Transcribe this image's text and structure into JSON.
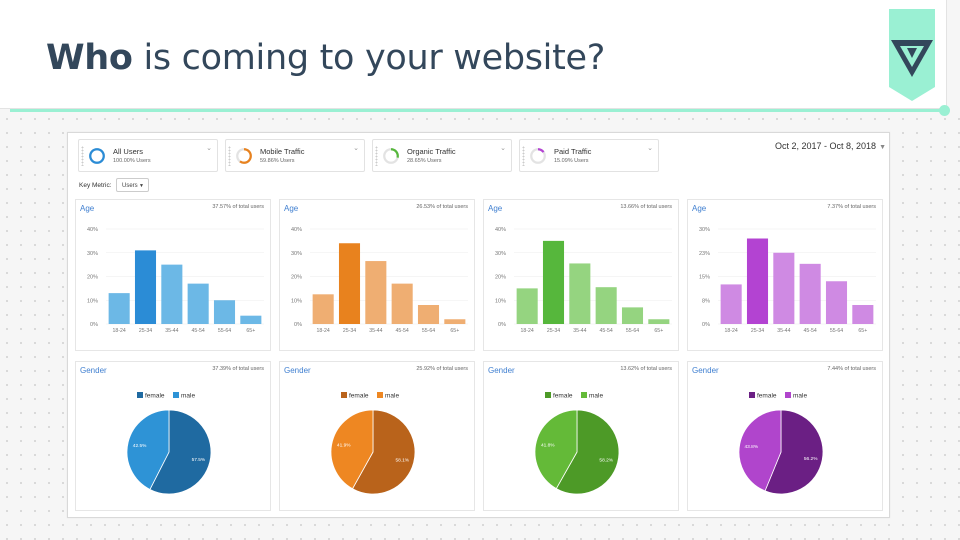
{
  "slide": {
    "title_bold": "Who",
    "title_rest": " is coming to your website?",
    "accent_color": "#9af0d3",
    "logo_icon": "triangle-logo-icon"
  },
  "dashboard": {
    "segments": [
      {
        "name": "All Users",
        "pct": "100.00% Users",
        "ring_value": 100,
        "color": "#2b8cd6"
      },
      {
        "name": "Mobile Traffic",
        "pct": "59.86% Users",
        "ring_value": 59.86,
        "color": "#e8821e"
      },
      {
        "name": "Organic Traffic",
        "pct": "28.65% Users",
        "ring_value": 28.65,
        "color": "#56b73c"
      },
      {
        "name": "Paid Traffic",
        "pct": "15.09% Users",
        "ring_value": 15.09,
        "color": "#b343d2"
      }
    ],
    "date_range": "Oct 2, 2017 - Oct 8, 2018",
    "key_metric_label": "Key Metric:",
    "key_metric_value": "Users"
  },
  "chart_data": [
    {
      "type": "bar",
      "title": "Age",
      "subtitle": "37.57% of total users",
      "color": "#2b8cd6",
      "light_color": "#6cb8e6",
      "categories": [
        "18-24",
        "25-34",
        "35-44",
        "45-54",
        "55-64",
        "65+"
      ],
      "values": [
        13,
        31,
        25,
        17,
        10,
        3.5
      ],
      "yticks": [
        "40%",
        "30%",
        "20%",
        "10%",
        "0%"
      ],
      "ylim": [
        0,
        40
      ]
    },
    {
      "type": "bar",
      "title": "Age",
      "subtitle": "26.53% of total users",
      "color": "#e8821e",
      "light_color": "#efae72",
      "categories": [
        "18-24",
        "25-34",
        "35-44",
        "45-54",
        "55-64",
        "65+"
      ],
      "values": [
        12.5,
        34,
        26.5,
        17,
        8,
        2
      ],
      "yticks": [
        "40%",
        "30%",
        "20%",
        "10%",
        "0%"
      ],
      "ylim": [
        0,
        40
      ]
    },
    {
      "type": "bar",
      "title": "Age",
      "subtitle": "13.66% of total users",
      "color": "#56b73c",
      "light_color": "#95d480",
      "categories": [
        "18-24",
        "25-34",
        "35-44",
        "45-54",
        "55-64",
        "65+"
      ],
      "values": [
        15,
        35,
        25.5,
        15.5,
        7,
        2
      ],
      "yticks": [
        "40%",
        "30%",
        "20%",
        "10%",
        "0%"
      ],
      "ylim": [
        0,
        40
      ]
    },
    {
      "type": "bar",
      "title": "Age",
      "subtitle": "7.37% of total users",
      "color": "#b343d2",
      "light_color": "#cf8ae3",
      "categories": [
        "18-24",
        "25-34",
        "35-44",
        "45-54",
        "55-64",
        "65+"
      ],
      "values": [
        12.5,
        27,
        22.5,
        19,
        13.5,
        6
      ],
      "yticks": [
        "30%",
        "23%",
        "15%",
        "8%",
        "0%"
      ],
      "ylim": [
        0,
        30
      ]
    },
    {
      "type": "pie",
      "title": "Gender",
      "subtitle": "37.39% of total users",
      "labels": [
        "female",
        "male"
      ],
      "values": [
        57.5,
        42.5
      ],
      "label_texts": [
        "57.5%",
        "42.5%"
      ],
      "colors": [
        "#1f6aa1",
        "#2e93d6"
      ]
    },
    {
      "type": "pie",
      "title": "Gender",
      "subtitle": "25.92% of total users",
      "labels": [
        "female",
        "male"
      ],
      "values": [
        58.1,
        41.9
      ],
      "label_texts": [
        "58.1%",
        "41.9%"
      ],
      "colors": [
        "#b9631b",
        "#ee8722"
      ]
    },
    {
      "type": "pie",
      "title": "Gender",
      "subtitle": "13.62% of total users",
      "labels": [
        "female",
        "male"
      ],
      "values": [
        58.2,
        41.8
      ],
      "label_texts": [
        "58.2%",
        "41.8%"
      ],
      "colors": [
        "#4d9a27",
        "#64ba38"
      ]
    },
    {
      "type": "pie",
      "title": "Gender",
      "subtitle": "7.44% of total users",
      "labels": [
        "female",
        "male"
      ],
      "values": [
        56.2,
        43.8
      ],
      "label_texts": [
        "56.2%",
        "43.8%"
      ],
      "colors": [
        "#6b1f84",
        "#b045cc"
      ]
    }
  ]
}
